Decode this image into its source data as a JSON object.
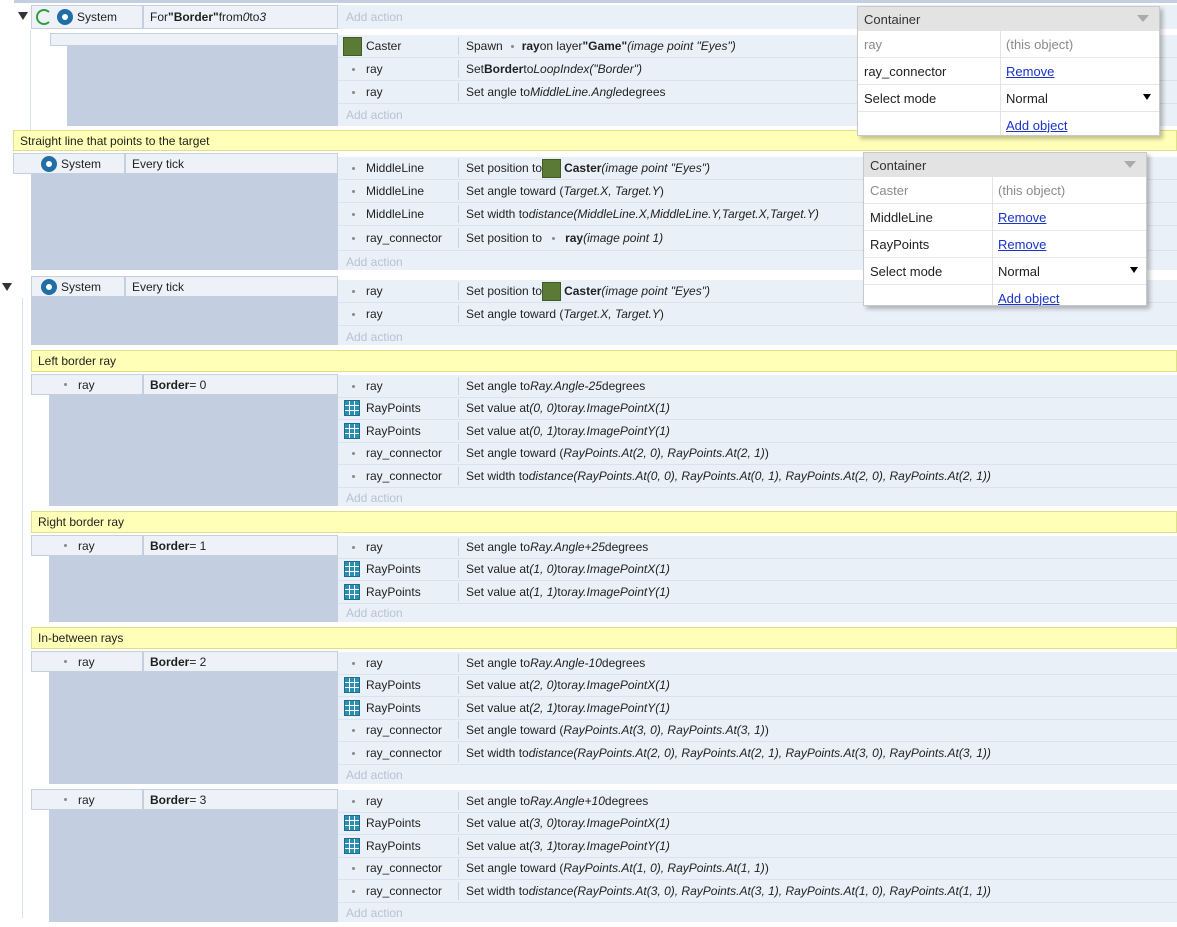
{
  "add_action": "Add action",
  "events": {
    "loop": {
      "cond_object": "System",
      "cond": {
        "p1": "For ",
        "name": "\"Border\"",
        "p2": " from ",
        "from": "0",
        "p3": " to ",
        "to": "3"
      },
      "actions": {
        "a1": {
          "obj": "Caster",
          "p1": "Spawn ",
          "o": "ray",
          "p2": " on layer ",
          "layer": "\"Game\"",
          "p3": " (image point \"Eyes\")"
        },
        "a2": {
          "obj": "ray",
          "p1": "Set ",
          "var": "Border",
          "p2": " to ",
          "e": "LoopIndex(\"Border\")"
        },
        "a3": {
          "obj": "ray",
          "p1": "Set angle to ",
          "e": "MiddleLine.Angle",
          "p2": " degrees"
        }
      }
    },
    "straight": {
      "comment": "Straight line that points to the target",
      "cond_object": "System",
      "cond": "Every tick",
      "actions": {
        "a1": {
          "obj": "MiddleLine",
          "p1": "Set position to ",
          "o": "Caster",
          "p2": " (image point \"Eyes\")"
        },
        "a2": {
          "obj": "MiddleLine",
          "p1": "Set angle toward (",
          "e": "Target.X, Target.Y",
          "p2": ")"
        },
        "a3": {
          "obj": "MiddleLine",
          "p1": "Set width to ",
          "e": "distance(MiddleLine.X,MiddleLine.Y,Target.X,Target.Y)"
        },
        "a4": {
          "obj": "ray_connector",
          "p1": "Set position to ",
          "o": "ray",
          "p2": " (image point 1)"
        }
      }
    },
    "tick": {
      "cond_object": "System",
      "cond": "Every tick",
      "actions": {
        "a1": {
          "obj": "ray",
          "p1": "Set position to ",
          "o": "Caster",
          "p2": " (image point \"Eyes\")"
        },
        "a2": {
          "obj": "ray",
          "p1": "Set angle toward (",
          "e": "Target.X, Target.Y",
          "p2": ")"
        }
      }
    },
    "left": {
      "comment": "Left border ray",
      "cond_object": "ray",
      "cond": {
        "var": "Border",
        "rest": " = 0"
      },
      "actions": {
        "a1": {
          "obj": "ray",
          "p1": "Set angle to ",
          "e": "Ray.Angle-25",
          "p2": " degrees"
        },
        "a2": {
          "obj": "RayPoints",
          "p1": "Set value at ",
          "e1": "(0, 0)",
          "p2": " to ",
          "e2": "ray.ImagePointX(1)"
        },
        "a3": {
          "obj": "RayPoints",
          "p1": "Set value at ",
          "e1": "(0, 1)",
          "p2": " to ",
          "e2": "ray.ImagePointY(1)"
        },
        "a4": {
          "obj": "ray_connector",
          "p1": "Set angle toward (",
          "e": "RayPoints.At(2, 0), RayPoints.At(2, 1)",
          "p2": ")"
        },
        "a5": {
          "obj": "ray_connector",
          "p1": "Set width to ",
          "e": "distance(RayPoints.At(0, 0), RayPoints.At(0, 1), RayPoints.At(2, 0), RayPoints.At(2, 1))"
        }
      }
    },
    "right": {
      "comment": "Right border ray",
      "cond_object": "ray",
      "cond": {
        "var": "Border",
        "rest": " = 1"
      },
      "actions": {
        "a1": {
          "obj": "ray",
          "p1": "Set angle to ",
          "e": "Ray.Angle+25",
          "p2": " degrees"
        },
        "a2": {
          "obj": "RayPoints",
          "p1": "Set value at ",
          "e1": "(1, 0)",
          "p2": " to ",
          "e2": "ray.ImagePointX(1)"
        },
        "a3": {
          "obj": "RayPoints",
          "p1": "Set value at ",
          "e1": "(1, 1)",
          "p2": " to ",
          "e2": "ray.ImagePointY(1)"
        }
      }
    },
    "between": {
      "comment": "In-between rays",
      "cond_object": "ray",
      "cond": {
        "var": "Border",
        "rest": " = 2"
      },
      "actions": {
        "a1": {
          "obj": "ray",
          "p1": "Set angle to ",
          "e": "Ray.Angle-10",
          "p2": " degrees"
        },
        "a2": {
          "obj": "RayPoints",
          "p1": "Set value at ",
          "e1": "(2, 0)",
          "p2": " to ",
          "e2": "ray.ImagePointX(1)"
        },
        "a3": {
          "obj": "RayPoints",
          "p1": "Set value at ",
          "e1": "(2, 1)",
          "p2": " to ",
          "e2": "ray.ImagePointY(1)"
        },
        "a4": {
          "obj": "ray_connector",
          "p1": "Set angle toward (",
          "e": "RayPoints.At(3, 0), RayPoints.At(3, 1)",
          "p2": ")"
        },
        "a5": {
          "obj": "ray_connector",
          "p1": "Set width to ",
          "e": "distance(RayPoints.At(2, 0), RayPoints.At(2, 1), RayPoints.At(3, 0), RayPoints.At(3, 1))"
        }
      }
    },
    "border3": {
      "cond_object": "ray",
      "cond": {
        "var": "Border",
        "rest": " = 3"
      },
      "actions": {
        "a1": {
          "obj": "ray",
          "p1": "Set angle to ",
          "e": "Ray.Angle+10",
          "p2": " degrees"
        },
        "a2": {
          "obj": "RayPoints",
          "p1": "Set value at ",
          "e1": "(3, 0)",
          "p2": " to ",
          "e2": "ray.ImagePointX(1)"
        },
        "a3": {
          "obj": "RayPoints",
          "p1": "Set value at ",
          "e1": "(3, 1)",
          "p2": " to ",
          "e2": "ray.ImagePointY(1)"
        },
        "a4": {
          "obj": "ray_connector",
          "p1": "Set angle toward (",
          "e": "RayPoints.At(1, 0), RayPoints.At(1, 1)",
          "p2": ")"
        },
        "a5": {
          "obj": "ray_connector",
          "p1": "Set width to ",
          "e": "distance(RayPoints.At(3, 0), RayPoints.At(3, 1), RayPoints.At(1, 0), RayPoints.At(1, 1))"
        }
      }
    }
  },
  "popup1": {
    "title": "Container",
    "rows": [
      {
        "k": "ray",
        "v": "(this object)"
      },
      {
        "k": "ray_connector",
        "v": "Remove"
      },
      {
        "k": "Select mode",
        "v": "Normal"
      },
      {
        "k": "",
        "v": "Add object"
      }
    ]
  },
  "popup2": {
    "title": "Container",
    "rows": [
      {
        "k": "Caster",
        "v": "(this object)"
      },
      {
        "k": "MiddleLine",
        "v": "Remove"
      },
      {
        "k": "RayPoints",
        "v": "Remove"
      },
      {
        "k": "Select mode",
        "v": "Normal"
      },
      {
        "k": "",
        "v": "Add object"
      }
    ]
  },
  "colors": {
    "comment_bg": "#ffffb8",
    "action_bg": "#eaf0f8",
    "condition_fill": "#c3cfe0",
    "link": "#1a33c9",
    "object_green": "#5a7a36"
  },
  "icons": [
    "collapse-triangle-icon",
    "loop-icon",
    "gear-icon",
    "grid-icon",
    "sprite-thumbnail-icon",
    "dot-icon",
    "dropdown-arrow-icon"
  ]
}
